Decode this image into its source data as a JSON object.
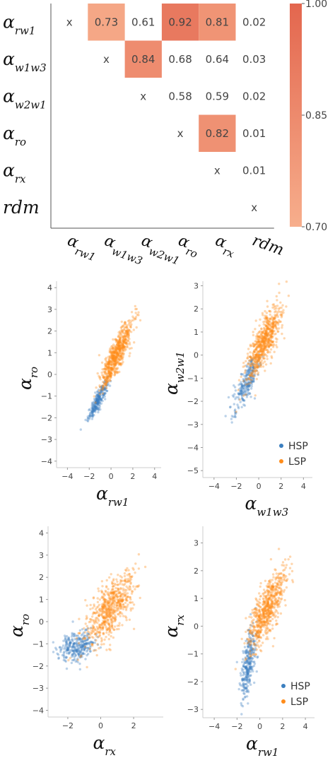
{
  "chart_data": [
    {
      "type": "heatmap",
      "row_labels": [
        {
          "base": "α",
          "sub": "rw1"
        },
        {
          "base": "α",
          "sub": "w1w3"
        },
        {
          "base": "α",
          "sub": "w2w1"
        },
        {
          "base": "α",
          "sub": "ro"
        },
        {
          "base": "α",
          "sub": "rx"
        },
        {
          "base": "rdm",
          "sub": ""
        }
      ],
      "col_labels": [
        {
          "base": "α",
          "sub": "rw1"
        },
        {
          "base": "α",
          "sub": "w1w3"
        },
        {
          "base": "α",
          "sub": "w2w1"
        },
        {
          "base": "α",
          "sub": "ro"
        },
        {
          "base": "α",
          "sub": "rx"
        },
        {
          "base": "rdm",
          "sub": ""
        }
      ],
      "cells": [
        [
          "x",
          "0.73",
          "0.61",
          "0.92",
          "0.81",
          "0.02"
        ],
        [
          "",
          "x",
          "0.84",
          "0.68",
          "0.64",
          "0.03"
        ],
        [
          "",
          "",
          "x",
          "0.58",
          "0.59",
          "0.02"
        ],
        [
          "",
          "",
          "",
          "x",
          "0.82",
          "0.01"
        ],
        [
          "",
          "",
          "",
          "",
          "x",
          "0.01"
        ],
        [
          "",
          "",
          "",
          "",
          "",
          "x"
        ]
      ],
      "color_threshold": 0.7,
      "colorbar": {
        "min": 0.7,
        "max": 1.0,
        "ticks": [
          "0.70",
          "0.85",
          "1.00"
        ],
        "color_low": "#f7ae8c",
        "color_high": "#e3664e"
      }
    },
    {
      "type": "scatter",
      "x_label": {
        "base": "α",
        "sub": "rw1"
      },
      "y_label": {
        "base": "α",
        "sub": "ro"
      },
      "xlim": [
        -5,
        4.6
      ],
      "ylim": [
        -4.3,
        4.3
      ],
      "xticks": [
        -4,
        -2,
        0,
        2,
        4
      ],
      "yticks": [
        -4,
        -3,
        -2,
        -1,
        0,
        1,
        2,
        3,
        4
      ],
      "series": [
        {
          "name": "HSP",
          "color": "#3b7fbf",
          "center": [
            -1.2,
            -1.2
          ],
          "spread": [
            0.45,
            0.45
          ],
          "corr": 0.9,
          "n": 260
        },
        {
          "name": "LSP",
          "color": "#ff8c1a",
          "center": [
            0.5,
            0.9
          ],
          "spread": [
            0.75,
            0.75
          ],
          "corr": 0.86,
          "n": 650
        }
      ],
      "legend": false
    },
    {
      "type": "scatter",
      "x_label": {
        "base": "α",
        "sub": "w1w3"
      },
      "y_label": {
        "base": "α",
        "sub": "w2w1"
      },
      "xlim": [
        -5,
        4.8
      ],
      "ylim": [
        -5.3,
        3.2
      ],
      "xticks": [
        -4,
        -2,
        0,
        2,
        4
      ],
      "yticks": [
        -5,
        -4,
        -3,
        -2,
        -1,
        0,
        1,
        2,
        3
      ],
      "series": [
        {
          "name": "HSP",
          "color": "#3b7fbf",
          "center": [
            -1.1,
            -1.2
          ],
          "spread": [
            0.6,
            0.6
          ],
          "corr": 0.8,
          "n": 260
        },
        {
          "name": "LSP",
          "color": "#ff8c1a",
          "center": [
            0.4,
            0.5
          ],
          "spread": [
            0.8,
            0.8
          ],
          "corr": 0.78,
          "n": 650
        }
      ],
      "legend": true,
      "legend_position": "bottom-right"
    },
    {
      "type": "scatter",
      "x_label": {
        "base": "α",
        "sub": "rx"
      },
      "y_label": {
        "base": "α",
        "sub": "ro"
      },
      "xlim": [
        -3.2,
        3.8
      ],
      "ylim": [
        -4.3,
        4.3
      ],
      "xticks": [
        -2,
        0,
        2
      ],
      "yticks": [
        -4,
        -3,
        -2,
        -1,
        0,
        1,
        2,
        3,
        4
      ],
      "series": [
        {
          "name": "HSP",
          "color": "#3b7fbf",
          "center": [
            -1.4,
            -1.1
          ],
          "spread": [
            0.55,
            0.35
          ],
          "corr": 0.3,
          "n": 300
        },
        {
          "name": "LSP",
          "color": "#ff8c1a",
          "center": [
            0.6,
            0.6
          ],
          "spread": [
            0.75,
            0.8
          ],
          "corr": 0.65,
          "n": 650
        }
      ],
      "legend": false
    },
    {
      "type": "scatter",
      "x_label": {
        "base": "α",
        "sub": "rw1"
      },
      "y_label": {
        "base": "α",
        "sub": "rx"
      },
      "xlim": [
        -5,
        4.8
      ],
      "ylim": [
        -3.3,
        3.6
      ],
      "xticks": [
        -4,
        -2,
        0,
        2,
        4
      ],
      "yticks": [
        -3,
        -2,
        -1,
        0,
        1,
        2,
        3
      ],
      "series": [
        {
          "name": "HSP",
          "color": "#3b7fbf",
          "center": [
            -1.0,
            -1.3
          ],
          "spread": [
            0.35,
            0.7
          ],
          "corr": 0.6,
          "n": 300
        },
        {
          "name": "LSP",
          "color": "#ff8c1a",
          "center": [
            0.6,
            0.6
          ],
          "spread": [
            0.8,
            0.7
          ],
          "corr": 0.75,
          "n": 650
        }
      ],
      "legend": true,
      "legend_position": "bottom-right"
    }
  ]
}
